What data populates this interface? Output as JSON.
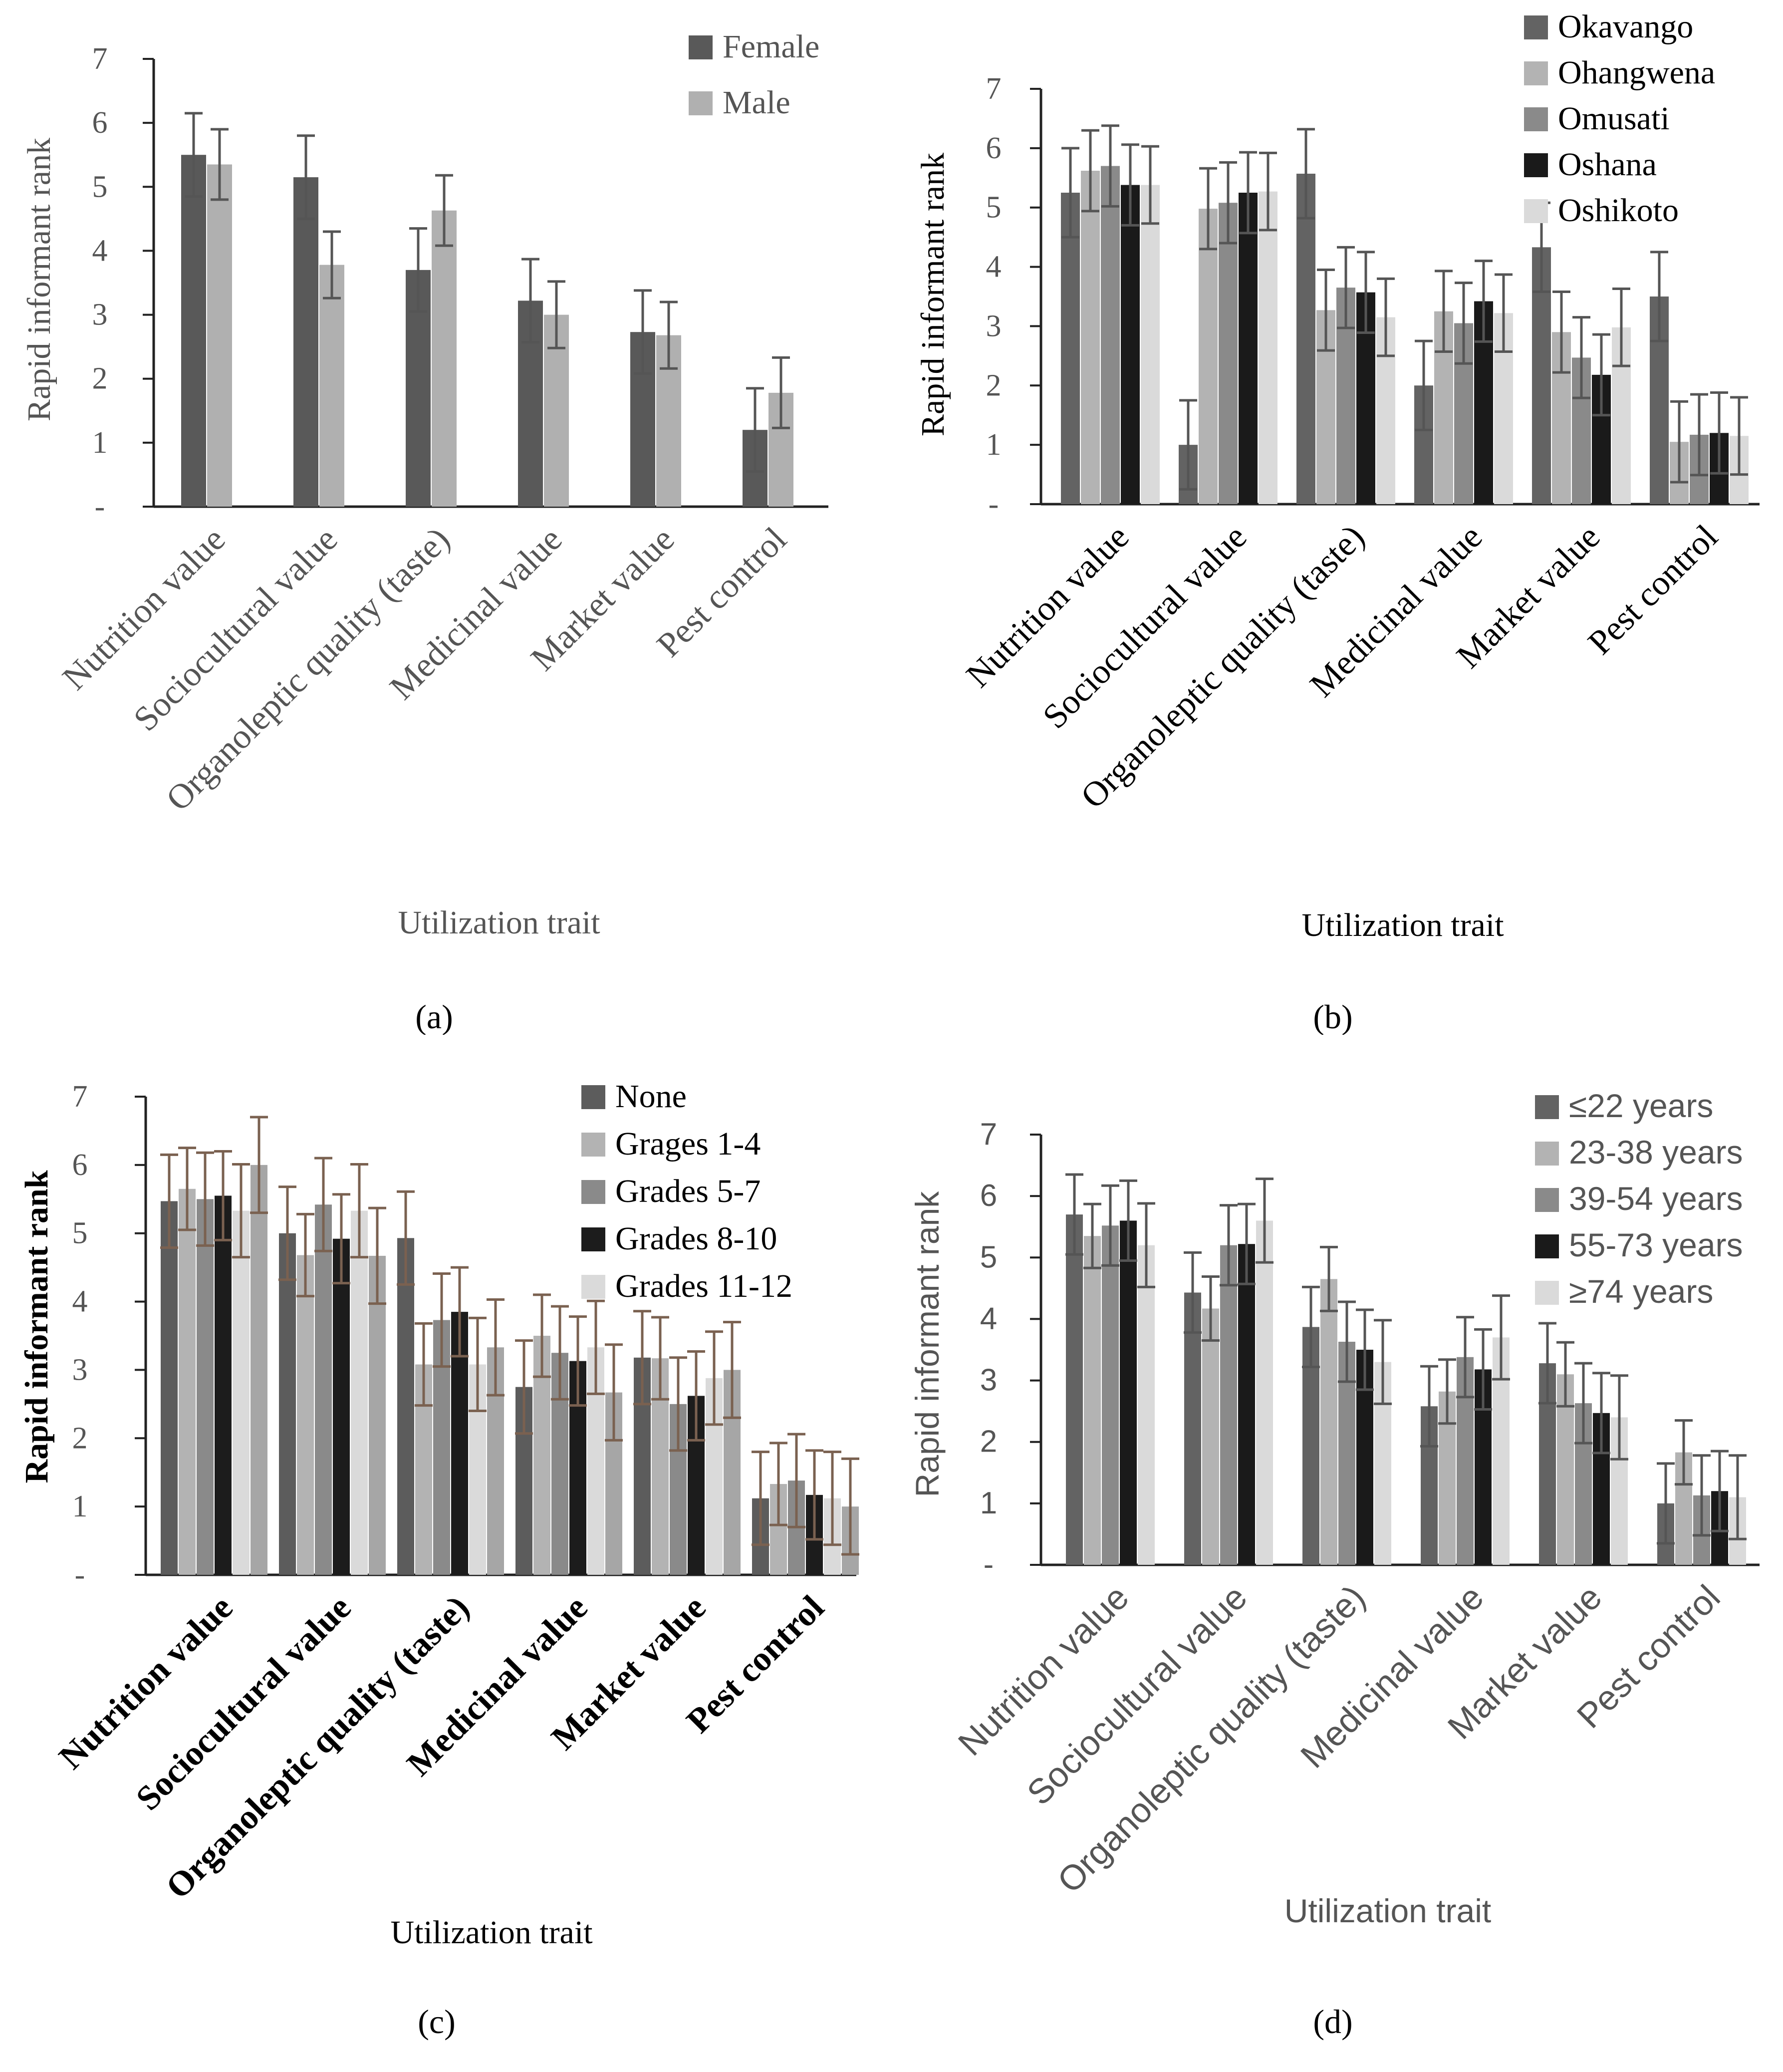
{
  "chart_data": [
    {
      "id": "a",
      "type": "bar",
      "caption": "(a)",
      "ylabel": "Rapid informant rank",
      "xlabel": "Utilization trait",
      "ylim": [
        0,
        7
      ],
      "yticks": [
        "-",
        "1",
        "2",
        "3",
        "4",
        "5",
        "6",
        "7"
      ],
      "categories": [
        "Nutrition value",
        "Sociocultural value",
        "Organoleptic quality (taste)",
        "Medicinal value",
        "Market value",
        "Pest control"
      ],
      "series": [
        {
          "name": "Female",
          "color": "#595959",
          "values": [
            5.5,
            5.15,
            3.7,
            3.22,
            2.73,
            1.2
          ],
          "errors": [
            0.65,
            0.65,
            0.65,
            0.65,
            0.65,
            0.65
          ]
        },
        {
          "name": "Male",
          "color": "#b0b0b0",
          "values": [
            5.35,
            3.78,
            4.63,
            3.0,
            2.68,
            1.78
          ],
          "errors": [
            0.55,
            0.52,
            0.55,
            0.52,
            0.52,
            0.55
          ]
        }
      ]
    },
    {
      "id": "b",
      "type": "bar",
      "caption": "(b)",
      "ylabel": "Rapid informant rank",
      "xlabel": "Utilization trait",
      "ylim": [
        0,
        7
      ],
      "yticks": [
        "-",
        "1",
        "2",
        "3",
        "4",
        "5",
        "6",
        "7"
      ],
      "categories": [
        "Nutrition value",
        "Sociocultural value",
        "Organoleptic quality (taste)",
        "Medicinal value",
        "Market value",
        "Pest control"
      ],
      "series": [
        {
          "name": "Okavango",
          "color": "#636363",
          "values": [
            5.25,
            1.0,
            5.57,
            2.0,
            4.33,
            3.5
          ],
          "errors": [
            0.75,
            0.75,
            0.75,
            0.75,
            0.75,
            0.75
          ]
        },
        {
          "name": "Ohangwena",
          "color": "#b3b3b3",
          "values": [
            5.62,
            4.98,
            3.27,
            3.25,
            2.9,
            1.05
          ],
          "errors": [
            0.68,
            0.68,
            0.68,
            0.68,
            0.68,
            0.68
          ]
        },
        {
          "name": "Omusati",
          "color": "#8a8a8a",
          "values": [
            5.7,
            5.08,
            3.65,
            3.05,
            2.47,
            1.17
          ],
          "errors": [
            0.68,
            0.68,
            0.68,
            0.68,
            0.68,
            0.68
          ]
        },
        {
          "name": "Oshana",
          "color": "#1a1a1a",
          "values": [
            5.38,
            5.25,
            3.57,
            3.42,
            2.18,
            1.2
          ],
          "errors": [
            0.68,
            0.68,
            0.68,
            0.68,
            0.68,
            0.68
          ]
        },
        {
          "name": "Oshikoto",
          "color": "#dadada",
          "values": [
            5.38,
            5.27,
            3.15,
            3.22,
            2.98,
            1.15
          ],
          "errors": [
            0.65,
            0.65,
            0.65,
            0.65,
            0.65,
            0.65
          ]
        }
      ]
    },
    {
      "id": "c",
      "type": "bar",
      "caption": "(c)",
      "ylabel": "Rapid informant rank",
      "xlabel": "Utilization trait",
      "ylim": [
        0,
        7
      ],
      "yticks": [
        "-",
        "1",
        "2",
        "3",
        "4",
        "5",
        "6",
        "7"
      ],
      "categories": [
        "Nutrition value",
        "Sociocultural value",
        "Organoleptic quality (taste)",
        "Medicinal value",
        "Market value",
        "Pest control"
      ],
      "series": [
        {
          "name": "None",
          "color": "#5c5c5c",
          "values": [
            5.47,
            5.0,
            4.93,
            2.75,
            3.18,
            1.12
          ],
          "errors": [
            0.68,
            0.68,
            0.68,
            0.68,
            0.68,
            0.68
          ]
        },
        {
          "name": "Grages 1-4",
          "color": "#b3b3b3",
          "values": [
            5.65,
            4.68,
            3.08,
            3.5,
            3.17,
            1.33
          ],
          "errors": [
            0.6,
            0.6,
            0.6,
            0.6,
            0.6,
            0.6
          ]
        },
        {
          "name": "Grades 5-7",
          "color": "#8a8a8a",
          "values": [
            5.5,
            5.42,
            3.73,
            3.25,
            2.5,
            1.38
          ],
          "errors": [
            0.68,
            0.68,
            0.68,
            0.68,
            0.68,
            0.68
          ]
        },
        {
          "name": "Grades 8-10",
          "color": "#1c1c1c",
          "values": [
            5.55,
            4.92,
            3.85,
            3.13,
            2.62,
            1.17
          ],
          "errors": [
            0.65,
            0.65,
            0.65,
            0.65,
            0.65,
            0.65
          ]
        },
        {
          "name": "Grades 11-12",
          "color": "#dadada",
          "values": [
            5.33,
            5.33,
            3.08,
            3.33,
            2.88,
            1.12
          ],
          "errors": [
            0.68,
            0.68,
            0.68,
            0.68,
            0.68,
            0.68
          ]
        },
        {
          "name": "",
          "color": "#a6a6a6",
          "values": [
            6.0,
            4.67,
            3.33,
            2.67,
            3.0,
            1.0
          ],
          "errors": [
            0.7,
            0.7,
            0.7,
            0.7,
            0.7,
            0.7
          ]
        }
      ]
    },
    {
      "id": "d",
      "type": "bar",
      "caption": "(d)",
      "ylabel": "Rapid informant rank",
      "xlabel": "Utilization trait",
      "ylim": [
        0,
        7
      ],
      "yticks": [
        "-",
        "1",
        "2",
        "3",
        "4",
        "5",
        "6",
        "7"
      ],
      "categories": [
        "Nutrition value",
        "Sociocultural value",
        "Organoleptic quality (taste)",
        "Medicinal value",
        "Market value",
        "Pest control"
      ],
      "series": [
        {
          "name": "≤22 years",
          "color": "#636363",
          "values": [
            5.7,
            4.43,
            3.87,
            2.58,
            3.28,
            1.0
          ],
          "errors": [
            0.65,
            0.65,
            0.65,
            0.65,
            0.65,
            0.65
          ]
        },
        {
          "name": "23-38 years",
          "color": "#b3b3b3",
          "values": [
            5.35,
            4.17,
            4.65,
            2.82,
            3.1,
            1.83
          ],
          "errors": [
            0.52,
            0.52,
            0.52,
            0.52,
            0.52,
            0.52
          ]
        },
        {
          "name": "39-54 years",
          "color": "#8a8a8a",
          "values": [
            5.52,
            5.2,
            3.63,
            3.38,
            2.63,
            1.13
          ],
          "errors": [
            0.65,
            0.65,
            0.65,
            0.65,
            0.65,
            0.65
          ]
        },
        {
          "name": "55-73 years",
          "color": "#1a1a1a",
          "values": [
            5.6,
            5.22,
            3.5,
            3.18,
            2.47,
            1.2
          ],
          "errors": [
            0.65,
            0.65,
            0.65,
            0.65,
            0.65,
            0.65
          ]
        },
        {
          "name": "≥74 years",
          "color": "#dadada",
          "values": [
            5.2,
            5.6,
            3.3,
            3.7,
            2.4,
            1.1
          ],
          "errors": [
            0.68,
            0.68,
            0.68,
            0.68,
            0.68,
            0.68
          ]
        }
      ]
    }
  ]
}
